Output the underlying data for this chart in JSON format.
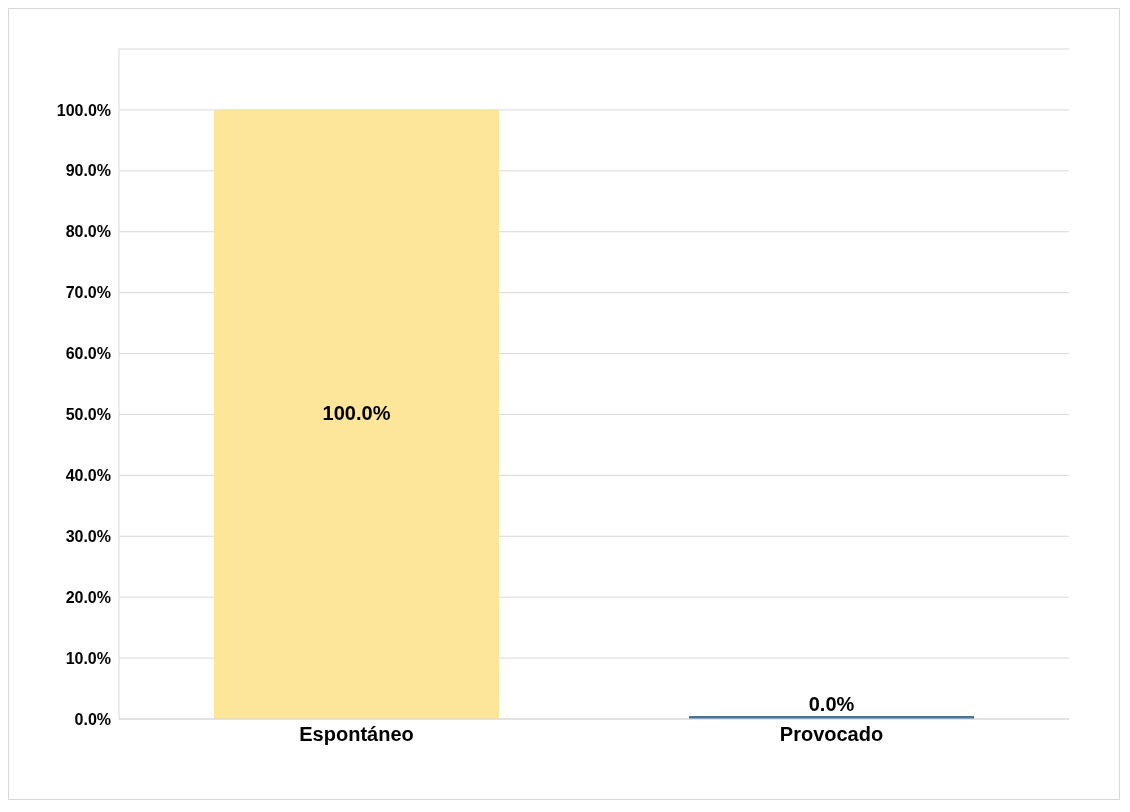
{
  "chart_data": {
    "type": "bar",
    "categories": [
      "Espontáneo",
      "Provocado"
    ],
    "values": [
      100,
      0
    ],
    "colors": [
      "#fde699",
      "#4674a1"
    ],
    "value_labels": [
      "100.0%",
      "0.0%"
    ],
    "ylim": [
      0,
      110
    ],
    "yticks": [
      {
        "value": 0,
        "label": "0.0%"
      },
      {
        "value": 10,
        "label": "10.0%"
      },
      {
        "value": 20,
        "label": "20.0%"
      },
      {
        "value": 30,
        "label": "30.0%"
      },
      {
        "value": 40,
        "label": "40.0%"
      },
      {
        "value": 50,
        "label": "50.0%"
      },
      {
        "value": 60,
        "label": "60.0%"
      },
      {
        "value": 70,
        "label": "70.0%"
      },
      {
        "value": 80,
        "label": "80.0%"
      },
      {
        "value": 90,
        "label": "90.0%"
      },
      {
        "value": 100,
        "label": "100.0%"
      },
      {
        "value": 110,
        "label": null
      }
    ],
    "grid": "y",
    "legend": false
  }
}
